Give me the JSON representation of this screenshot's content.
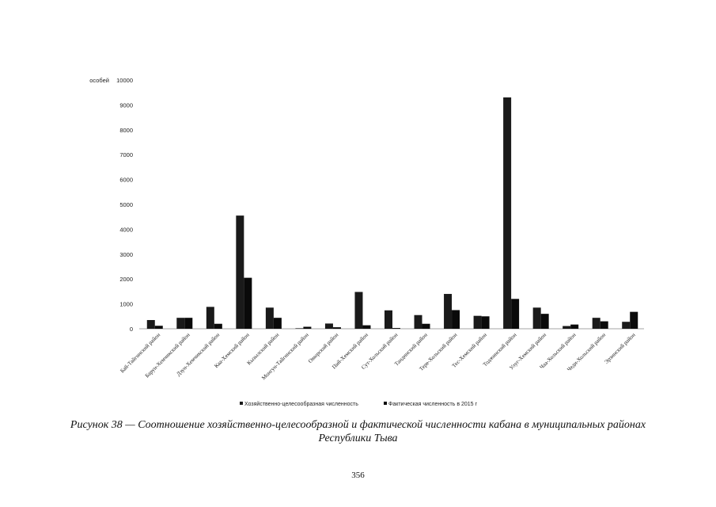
{
  "figure": {
    "caption_line1": "Рисунок 38 — Соотношение хозяйственно-целесообразной и фактической численности кабана в муниципальных районах",
    "caption_line2": "Республики Тыва"
  },
  "page_number": "356",
  "chart_data": {
    "type": "bar",
    "ylabel": "особей",
    "xlabel": "",
    "title": "",
    "ylim": [
      0,
      10000
    ],
    "yticks": [
      0,
      1000,
      2000,
      3000,
      4000,
      5000,
      6000,
      7000,
      8000,
      9000,
      10000
    ],
    "grid": false,
    "legend": "bottom",
    "categories": [
      "Бай-Тайгинский район",
      "Барун-Хемчикский район",
      "Дзун-Хемчикский район",
      "Каа-Хемский район",
      "Кызылский район",
      "Монгун-Тайгинский район",
      "Овюрский район",
      "Пий-Хемский район",
      "Сут-Хольский район",
      "Тандинский район",
      "Тере-Хольский район",
      "Тес-Хемский район",
      "Тоджинский район",
      "Улуг-Хемский район",
      "Чаа-Хольский район",
      "Чеди-Хольский район",
      "Эрзинский район"
    ],
    "series": [
      {
        "name": "Хозяйственно-целесообразная численность",
        "color": "#1a1a1a",
        "values": [
          350,
          440,
          880,
          4550,
          850,
          20,
          210,
          1480,
          740,
          550,
          1400,
          520,
          9300,
          850,
          110,
          440,
          280
        ]
      },
      {
        "name": "Фактическая численность в 2015 г",
        "color": "#0a0a0a",
        "values": [
          120,
          440,
          200,
          2050,
          440,
          80,
          60,
          140,
          30,
          200,
          750,
          500,
          1200,
          600,
          170,
          300,
          680
        ]
      }
    ]
  }
}
